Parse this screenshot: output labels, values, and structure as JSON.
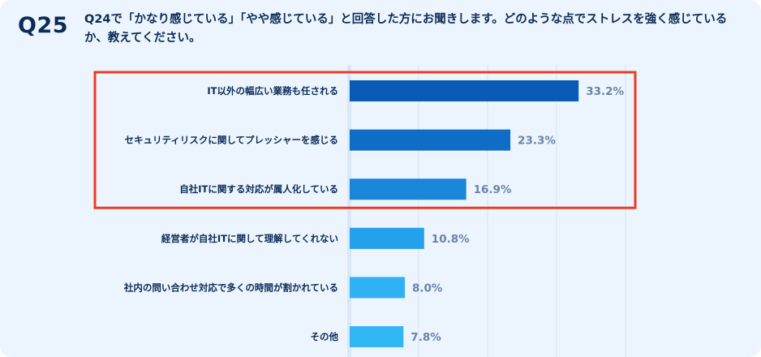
{
  "header": {
    "question_number": "Q25",
    "question_text": "Q24で「かなり感じている」「やや感じている」と回答した方にお聞きします。どのような点でストレスを強く感じているか、教えてください。"
  },
  "colors": {
    "background": "#ecf5fd",
    "title": "#0d2b57",
    "value_label": "#6a83a8",
    "highlight_box": "#ee3a24",
    "bars": [
      "#0a5bb5",
      "#0f6dc7",
      "#1a86da",
      "#25a0ea",
      "#2eb2f3",
      "#32b7f5"
    ]
  },
  "chart_data": {
    "type": "bar",
    "orientation": "horizontal",
    "categories": [
      "IT以外の幅広い業務も任される",
      "セキュリティリスクに関してプレッシャーを感じる",
      "自社ITに関する対応が属人化している",
      "経営者が自社ITに関して理解してくれない",
      "社内の問い合わせ対応で多くの時間が割かれている",
      "その他"
    ],
    "values": [
      33.2,
      23.3,
      16.9,
      10.8,
      8.0,
      7.8
    ],
    "value_labels": [
      "33.2%",
      "23.3%",
      "16.9%",
      "10.8%",
      "8.0%",
      "7.8%"
    ],
    "unit": "%",
    "xlim": [
      0,
      40
    ],
    "grid": true,
    "highlighted_categories": [
      0,
      1,
      2
    ]
  }
}
